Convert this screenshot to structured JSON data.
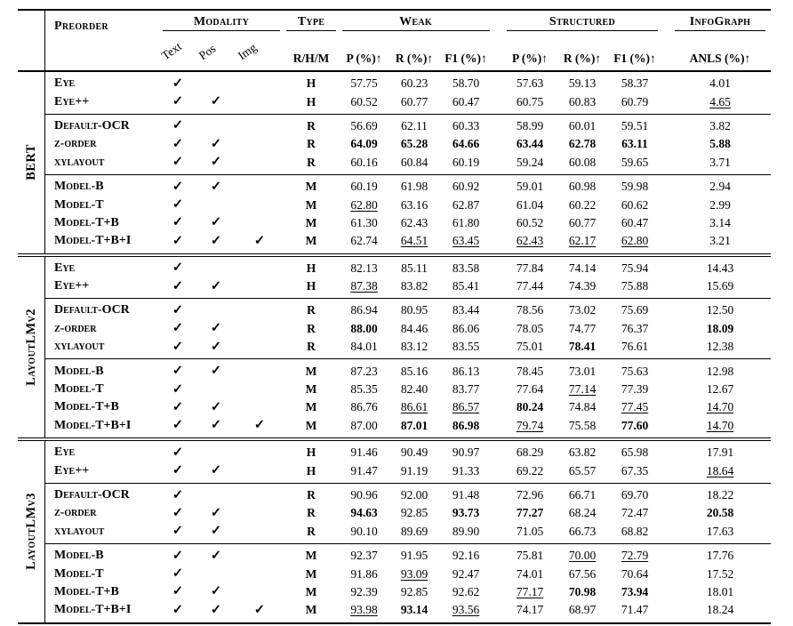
{
  "header": {
    "preorder": "Preorder",
    "modality": "Modality",
    "type": "Type",
    "weak": "Weak",
    "structured": "Structured",
    "infograph": "InfoGraph",
    "modality_cols": [
      "Text",
      "Pos",
      "Img"
    ],
    "type_sub": "R/H/M",
    "metric_cols": [
      "P (%)↑",
      "R (%)↑",
      "F1 (%)↑"
    ],
    "anls_col": "ANLS (%)↑",
    "check_icon": "✓"
  },
  "table": {
    "sections": [
      {
        "model": "BERT",
        "groups": [
          [
            {
              "label": "Eye",
              "modality": [
                1,
                0,
                0
              ],
              "type": "H",
              "weak": [
                "57.75",
                "60.23",
                "58.70"
              ],
              "structured": [
                "57.63",
                "59.13",
                "58.37"
              ],
              "anls": "4.01"
            },
            {
              "label": "Eye++",
              "modality": [
                1,
                1,
                0
              ],
              "type": "H",
              "weak": [
                "60.52",
                "60.77",
                "60.47"
              ],
              "structured": [
                "60.75",
                "60.83",
                "60.79"
              ],
              "anls": "4.65|u"
            }
          ],
          [
            {
              "label": "Default-OCR",
              "modality": [
                1,
                0,
                0
              ],
              "type": "R",
              "weak": [
                "56.69",
                "62.11",
                "60.33"
              ],
              "structured": [
                "58.99",
                "60.01",
                "59.51"
              ],
              "anls": "3.82"
            },
            {
              "label": "z-order",
              "modality": [
                1,
                1,
                0
              ],
              "type": "R",
              "weak": [
                "64.09|b",
                "65.28|b",
                "64.66|b"
              ],
              "structured": [
                "63.44|b",
                "62.78|b",
                "63.11|b"
              ],
              "anls": "5.88|b"
            },
            {
              "label": "xylayout",
              "modality": [
                1,
                1,
                0
              ],
              "type": "R",
              "weak": [
                "60.16",
                "60.84",
                "60.19"
              ],
              "structured": [
                "59.24",
                "60.08",
                "59.65"
              ],
              "anls": "3.71"
            }
          ],
          [
            {
              "label": "Model-B",
              "modality": [
                1,
                1,
                0
              ],
              "type": "M",
              "weak": [
                "60.19",
                "61.98",
                "60.92"
              ],
              "structured": [
                "59.01",
                "60.98",
                "59.98"
              ],
              "anls": "2.94"
            },
            {
              "label": "Model-T",
              "modality": [
                1,
                0,
                0
              ],
              "type": "M",
              "weak": [
                "62.80|u",
                "63.16",
                "62.87"
              ],
              "structured": [
                "61.04",
                "60.22",
                "60.62"
              ],
              "anls": "2.99"
            },
            {
              "label": "Model-T+B",
              "modality": [
                1,
                1,
                0
              ],
              "type": "M",
              "weak": [
                "61.30",
                "62.43",
                "61.80"
              ],
              "structured": [
                "60.52",
                "60.77",
                "60.47"
              ],
              "anls": "3.14"
            },
            {
              "label": "Model-T+B+I",
              "modality": [
                1,
                1,
                1
              ],
              "type": "M",
              "weak": [
                "62.74",
                "64.51|u",
                "63.45|u"
              ],
              "structured": [
                "62.43|u",
                "62.17|u",
                "62.80|u"
              ],
              "anls": "3.21"
            }
          ]
        ]
      },
      {
        "model": "LayoutLMv2",
        "groups": [
          [
            {
              "label": "Eye",
              "modality": [
                1,
                0,
                0
              ],
              "type": "H",
              "weak": [
                "82.13",
                "85.11",
                "83.58"
              ],
              "structured": [
                "77.84",
                "74.14",
                "75.94"
              ],
              "anls": "14.43"
            },
            {
              "label": "Eye++",
              "modality": [
                1,
                1,
                0
              ],
              "type": "H",
              "weak": [
                "87.38|u",
                "83.82",
                "85.41"
              ],
              "structured": [
                "77.44",
                "74.39",
                "75.88"
              ],
              "anls": "15.69"
            }
          ],
          [
            {
              "label": "Default-OCR",
              "modality": [
                1,
                0,
                0
              ],
              "type": "R",
              "weak": [
                "86.94",
                "80.95",
                "83.44"
              ],
              "structured": [
                "78.56",
                "73.02",
                "75.69"
              ],
              "anls": "12.50"
            },
            {
              "label": "z-order",
              "modality": [
                1,
                1,
                0
              ],
              "type": "R",
              "weak": [
                "88.00|b",
                "84.46",
                "86.06"
              ],
              "structured": [
                "78.05",
                "74.77",
                "76.37"
              ],
              "anls": "18.09|b"
            },
            {
              "label": "xylayout",
              "modality": [
                1,
                1,
                0
              ],
              "type": "R",
              "weak": [
                "84.01",
                "83.12",
                "83.55"
              ],
              "structured": [
                "75.01",
                "78.41|b",
                "76.61"
              ],
              "anls": "12.38"
            }
          ],
          [
            {
              "label": "Model-B",
              "modality": [
                1,
                1,
                0
              ],
              "type": "M",
              "weak": [
                "87.23",
                "85.16",
                "86.13"
              ],
              "structured": [
                "78.45",
                "73.01",
                "75.63"
              ],
              "anls": "12.98"
            },
            {
              "label": "Model-T",
              "modality": [
                1,
                0,
                0
              ],
              "type": "M",
              "weak": [
                "85.35",
                "82.40",
                "83.77"
              ],
              "structured": [
                "77.64",
                "77.14|u",
                "77.39"
              ],
              "anls": "12.67"
            },
            {
              "label": "Model-T+B",
              "modality": [
                1,
                1,
                0
              ],
              "type": "M",
              "weak": [
                "86.76",
                "86.61|u",
                "86.57|u"
              ],
              "structured": [
                "80.24|b",
                "74.84",
                "77.45|u"
              ],
              "anls": "14.70|u"
            },
            {
              "label": "Model-T+B+I",
              "modality": [
                1,
                1,
                1
              ],
              "type": "M",
              "weak": [
                "87.00",
                "87.01|b",
                "86.98|b"
              ],
              "structured": [
                "79.74|u",
                "75.58",
                "77.60|b"
              ],
              "anls": "14.70|u"
            }
          ]
        ]
      },
      {
        "model": "LayoutLMv3",
        "groups": [
          [
            {
              "label": "Eye",
              "modality": [
                1,
                0,
                0
              ],
              "type": "H",
              "weak": [
                "91.46",
                "90.49",
                "90.97"
              ],
              "structured": [
                "68.29",
                "63.82",
                "65.98"
              ],
              "anls": "17.91"
            },
            {
              "label": "Eye++",
              "modality": [
                1,
                1,
                0
              ],
              "type": "H",
              "weak": [
                "91.47",
                "91.19",
                "91.33"
              ],
              "structured": [
                "69.22",
                "65.57",
                "67.35"
              ],
              "anls": "18.64|u"
            }
          ],
          [
            {
              "label": "Default-OCR",
              "modality": [
                1,
                0,
                0
              ],
              "type": "R",
              "weak": [
                "90.96",
                "92.00",
                "91.48"
              ],
              "structured": [
                "72.96",
                "66.71",
                "69.70"
              ],
              "anls": "18.22"
            },
            {
              "label": "z-order",
              "modality": [
                1,
                1,
                0
              ],
              "type": "R",
              "weak": [
                "94.63|b",
                "92.85",
                "93.73|b"
              ],
              "structured": [
                "77.27|b",
                "68.24",
                "72.47"
              ],
              "anls": "20.58|b"
            },
            {
              "label": "xylayout",
              "modality": [
                1,
                1,
                0
              ],
              "type": "R",
              "weak": [
                "90.10",
                "89.69",
                "89.90"
              ],
              "structured": [
                "71.05",
                "66.73",
                "68.82"
              ],
              "anls": "17.63"
            }
          ],
          [
            {
              "label": "Model-B",
              "modality": [
                1,
                1,
                0
              ],
              "type": "M",
              "weak": [
                "92.37",
                "91.95",
                "92.16"
              ],
              "structured": [
                "75.81",
                "70.00|u",
                "72.79|u"
              ],
              "anls": "17.76"
            },
            {
              "label": "Model-T",
              "modality": [
                1,
                0,
                0
              ],
              "type": "M",
              "weak": [
                "91.86",
                "93.09|u",
                "92.47"
              ],
              "structured": [
                "74.01",
                "67.56",
                "70.64"
              ],
              "anls": "17.52"
            },
            {
              "label": "Model-T+B",
              "modality": [
                1,
                1,
                0
              ],
              "type": "M",
              "weak": [
                "92.39",
                "92.85",
                "92.62"
              ],
              "structured": [
                "77.17|u",
                "70.98|b",
                "73.94|b"
              ],
              "anls": "18.01"
            },
            {
              "label": "Model-T+B+I",
              "modality": [
                1,
                1,
                1
              ],
              "type": "M",
              "weak": [
                "93.98|u",
                "93.14|b",
                "93.56|u"
              ],
              "structured": [
                "74.17",
                "68.97",
                "71.47"
              ],
              "anls": "18.24"
            }
          ]
        ]
      }
    ]
  }
}
